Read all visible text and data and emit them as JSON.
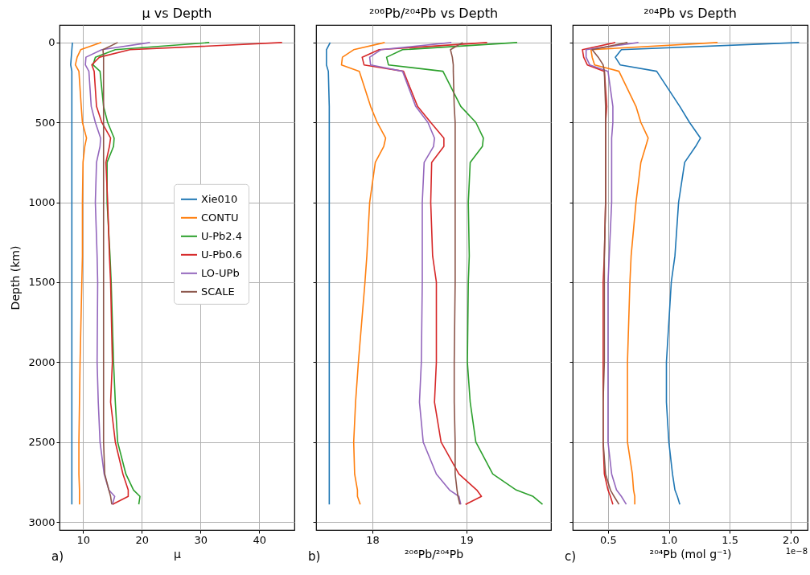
{
  "chart_data": [
    {
      "type": "line",
      "title": "μ vs Depth",
      "xlabel": "μ",
      "ylabel": "Depth (km)",
      "xlim": [
        6,
        46
      ],
      "xticks": [
        10,
        20,
        30,
        40
      ],
      "ylim": [
        3050,
        -110
      ],
      "yticks": [
        0,
        500,
        1000,
        1500,
        2000,
        2500,
        3000
      ],
      "grid": true,
      "legend": "right",
      "annotations": [
        "a)"
      ],
      "series": [
        {
          "name": "Xie010",
          "color": "#1f77b4",
          "x": [
            8.2,
            8.1,
            8.0,
            7.9,
            8.1,
            8.1,
            8.1,
            8.1,
            8.1,
            8.1,
            8.1,
            8.1,
            8.1,
            8.1,
            8.1,
            8.1,
            8.1,
            8.1,
            8.1,
            8.1
          ],
          "values": [
            0,
            45,
            92,
            140,
            180,
            400,
            500,
            598,
            650,
            750,
            1000,
            1335,
            1500,
            2000,
            2250,
            2500,
            2700,
            2800,
            2840,
            2890
          ]
        },
        {
          "name": "CONTU",
          "color": "#ff7f0e",
          "x": [
            13.1,
            9.6,
            9.0,
            8.7,
            9.3,
            9.7,
            9.9,
            10.6,
            10.3,
            10.0,
            9.9,
            9.9,
            9.8,
            9.5,
            9.4,
            9.3,
            9.3,
            9.4,
            9.4,
            9.4
          ],
          "values": [
            0,
            45,
            92,
            140,
            180,
            400,
            500,
            598,
            650,
            750,
            1000,
            1335,
            1500,
            2000,
            2250,
            2500,
            2700,
            2800,
            2840,
            2890
          ]
        },
        {
          "name": "U-Pb2.4",
          "color": "#2ca02c",
          "x": [
            31.5,
            15.5,
            12.1,
            11.7,
            12.9,
            13.5,
            14.2,
            15.3,
            15.2,
            14.1,
            14.1,
            14.6,
            14.8,
            15.2,
            15.5,
            15.9,
            17.3,
            18.6,
            19.7,
            19.5
          ],
          "values": [
            0,
            45,
            92,
            140,
            180,
            400,
            500,
            598,
            650,
            750,
            1000,
            1335,
            1500,
            2000,
            2250,
            2500,
            2700,
            2800,
            2840,
            2890
          ]
        },
        {
          "name": "U-Pb0.6",
          "color": "#d62728",
          "x": [
            43.9,
            18.0,
            12.8,
            11.5,
            11.9,
            12.3,
            13.2,
            14.7,
            14.5,
            13.9,
            14.2,
            14.5,
            14.7,
            15.0,
            14.7,
            15.5,
            16.8,
            17.7,
            17.7,
            15.0
          ],
          "values": [
            0,
            45,
            92,
            140,
            180,
            400,
            500,
            598,
            650,
            750,
            1000,
            1335,
            1500,
            2000,
            2250,
            2500,
            2700,
            2800,
            2840,
            2890
          ]
        },
        {
          "name": "LO-UPb",
          "color": "#9467bd",
          "x": [
            21.4,
            13.2,
            10.5,
            10.4,
            11.0,
            11.4,
            12.1,
            13.0,
            12.9,
            12.3,
            12.1,
            12.4,
            12.5,
            12.4,
            12.6,
            12.9,
            13.6,
            14.4,
            15.4,
            15.0
          ],
          "values": [
            0,
            45,
            92,
            140,
            180,
            400,
            500,
            598,
            650,
            750,
            1000,
            1335,
            1500,
            2000,
            2250,
            2500,
            2700,
            2800,
            2840,
            2890
          ]
        },
        {
          "name": "SCALE",
          "color": "#8c564b",
          "x": [
            15.9,
            13.4,
            13.5,
            13.5,
            13.5,
            13.5,
            13.5,
            13.5,
            13.5,
            13.5,
            13.5,
            13.5,
            13.5,
            13.5,
            13.5,
            13.5,
            13.7,
            14.4,
            14.7,
            14.9
          ],
          "values": [
            0,
            45,
            92,
            140,
            180,
            400,
            500,
            598,
            650,
            750,
            1000,
            1335,
            1500,
            2000,
            2250,
            2500,
            2700,
            2800,
            2840,
            2890
          ]
        }
      ]
    },
    {
      "type": "line",
      "title": "²⁰⁶Pb/²⁰⁴Pb vs Depth",
      "xlabel": "²⁰⁶Pb/²⁰⁴Pb",
      "xlim": [
        17.4,
        19.9
      ],
      "xticks": [
        18,
        19
      ],
      "ylim": [
        3050,
        -110
      ],
      "yticks": [
        0,
        500,
        1000,
        1500,
        2000,
        2500,
        3000
      ],
      "grid": true,
      "tick_labels": "x",
      "annotations": [
        "b)"
      ],
      "series": [
        {
          "color": "#1f77b4",
          "x": [
            17.55,
            17.51,
            17.51,
            17.51,
            17.53,
            17.54,
            17.54,
            17.54,
            17.54,
            17.54,
            17.54,
            17.54,
            17.54,
            17.54,
            17.54,
            17.54,
            17.54,
            17.54,
            17.54,
            17.54
          ],
          "values": [
            0,
            45,
            92,
            140,
            180,
            400,
            500,
            598,
            650,
            750,
            1000,
            1335,
            1500,
            2000,
            2250,
            2500,
            2700,
            2800,
            2840,
            2890
          ]
        },
        {
          "color": "#ff7f0e",
          "x": [
            18.13,
            17.8,
            17.68,
            17.67,
            17.86,
            17.98,
            18.05,
            18.14,
            18.12,
            18.03,
            17.97,
            17.94,
            17.92,
            17.85,
            17.82,
            17.8,
            17.81,
            17.84,
            17.84,
            17.87
          ],
          "values": [
            0,
            45,
            92,
            140,
            180,
            400,
            500,
            598,
            650,
            750,
            1000,
            1335,
            1500,
            2000,
            2250,
            2500,
            2700,
            2800,
            2840,
            2890
          ]
        },
        {
          "color": "#2ca02c",
          "x": [
            19.54,
            18.32,
            18.15,
            18.17,
            18.75,
            18.94,
            19.1,
            19.18,
            19.17,
            19.04,
            19.02,
            19.03,
            19.02,
            19.01,
            19.04,
            19.1,
            19.28,
            19.53,
            19.71,
            19.81
          ],
          "values": [
            0,
            45,
            92,
            140,
            180,
            400,
            500,
            598,
            650,
            750,
            1000,
            1335,
            1500,
            2000,
            2250,
            2500,
            2700,
            2800,
            2840,
            2890
          ]
        },
        {
          "color": "#d62728",
          "x": [
            19.22,
            18.07,
            17.89,
            17.91,
            18.33,
            18.48,
            18.62,
            18.76,
            18.76,
            18.63,
            18.62,
            18.64,
            18.68,
            18.68,
            18.66,
            18.73,
            18.92,
            19.11,
            19.16,
            18.99
          ],
          "values": [
            0,
            45,
            92,
            140,
            180,
            400,
            500,
            598,
            650,
            750,
            1000,
            1335,
            1500,
            2000,
            2250,
            2500,
            2700,
            2800,
            2840,
            2890
          ]
        },
        {
          "color": "#9467bd",
          "x": [
            18.84,
            18.09,
            17.97,
            17.98,
            18.32,
            18.46,
            18.59,
            18.66,
            18.65,
            18.55,
            18.53,
            18.53,
            18.53,
            18.52,
            18.5,
            18.54,
            18.68,
            18.82,
            18.92,
            18.94
          ],
          "values": [
            0,
            45,
            92,
            140,
            180,
            400,
            500,
            598,
            650,
            750,
            1000,
            1335,
            1500,
            2000,
            2250,
            2500,
            2700,
            2800,
            2840,
            2890
          ]
        },
        {
          "color": "#8c564b",
          "x": [
            18.96,
            18.83,
            18.85,
            18.86,
            18.86,
            18.87,
            18.88,
            18.88,
            18.88,
            18.88,
            18.88,
            18.88,
            18.88,
            18.87,
            18.87,
            18.88,
            18.88,
            18.9,
            18.91,
            18.93
          ],
          "values": [
            0,
            45,
            92,
            140,
            180,
            400,
            500,
            598,
            650,
            750,
            1000,
            1335,
            1500,
            2000,
            2250,
            2500,
            2700,
            2800,
            2840,
            2890
          ]
        }
      ]
    },
    {
      "type": "line",
      "title": "²⁰⁴Pb vs Depth",
      "xlabel": "²⁰⁴Pb (mol g⁻¹)",
      "xlim": [
        0.21,
        2.14
      ],
      "xticks": [
        0.5,
        {
          "value": 1,
          "label": "1.0"
        },
        1.5,
        {
          "value": 2,
          "label": "2.0"
        }
      ],
      "ylim": [
        3050,
        -110
      ],
      "yticks": [
        0,
        500,
        1000,
        1500,
        2000,
        2500,
        3000
      ],
      "grid": true,
      "tick_labels": "x",
      "annotations": [
        "c)",
        "1e−8"
      ],
      "series": [
        {
          "color": "#1f77b4",
          "x": [
            2.07,
            0.61,
            0.56,
            0.6,
            0.9,
            1.09,
            1.17,
            1.26,
            1.22,
            1.13,
            1.08,
            1.05,
            1.02,
            0.98,
            0.98,
            1.0,
            1.03,
            1.05,
            1.07,
            1.09
          ],
          "values": [
            0,
            45,
            92,
            140,
            180,
            400,
            500,
            598,
            650,
            750,
            1000,
            1335,
            1500,
            2000,
            2250,
            2500,
            2700,
            2800,
            2840,
            2890
          ]
        },
        {
          "color": "#ff7f0e",
          "x": [
            1.4,
            0.36,
            0.37,
            0.39,
            0.59,
            0.73,
            0.77,
            0.83,
            0.81,
            0.77,
            0.73,
            0.69,
            0.68,
            0.66,
            0.66,
            0.66,
            0.7,
            0.71,
            0.72,
            0.72
          ],
          "values": [
            0,
            45,
            92,
            140,
            180,
            400,
            500,
            598,
            650,
            750,
            1000,
            1335,
            1500,
            2000,
            2250,
            2500,
            2700,
            2800,
            2840,
            2890
          ]
        },
        {
          "color": "#d62728",
          "x": [
            0.56,
            0.29,
            0.3,
            0.33,
            0.47,
            0.49,
            0.48,
            0.48,
            0.48,
            0.48,
            0.48,
            0.47,
            0.46,
            0.46,
            0.46,
            0.46,
            0.47,
            0.5,
            0.52,
            0.54
          ],
          "values": [
            0,
            45,
            92,
            140,
            180,
            400,
            500,
            598,
            650,
            750,
            1000,
            1335,
            1500,
            2000,
            2250,
            2500,
            2700,
            2800,
            2840,
            2890
          ]
        },
        {
          "color": "#9467bd",
          "x": [
            0.75,
            0.32,
            0.32,
            0.35,
            0.5,
            0.54,
            0.54,
            0.53,
            0.53,
            0.53,
            0.53,
            0.51,
            0.5,
            0.5,
            0.5,
            0.5,
            0.53,
            0.57,
            0.61,
            0.65
          ],
          "values": [
            0,
            45,
            92,
            140,
            180,
            400,
            500,
            598,
            650,
            750,
            1000,
            1335,
            1500,
            2000,
            2250,
            2500,
            2700,
            2800,
            2840,
            2890
          ]
        },
        {
          "color": "#8c564b",
          "x": [
            0.66,
            0.37,
            0.42,
            0.46,
            0.47,
            0.48,
            0.48,
            0.48,
            0.48,
            0.48,
            0.48,
            0.47,
            0.47,
            0.47,
            0.46,
            0.46,
            0.48,
            0.52,
            0.55,
            0.59
          ],
          "values": [
            0,
            45,
            92,
            140,
            180,
            400,
            500,
            598,
            650,
            750,
            1000,
            1335,
            1500,
            2000,
            2250,
            2500,
            2700,
            2800,
            2840,
            2890
          ]
        }
      ]
    }
  ]
}
